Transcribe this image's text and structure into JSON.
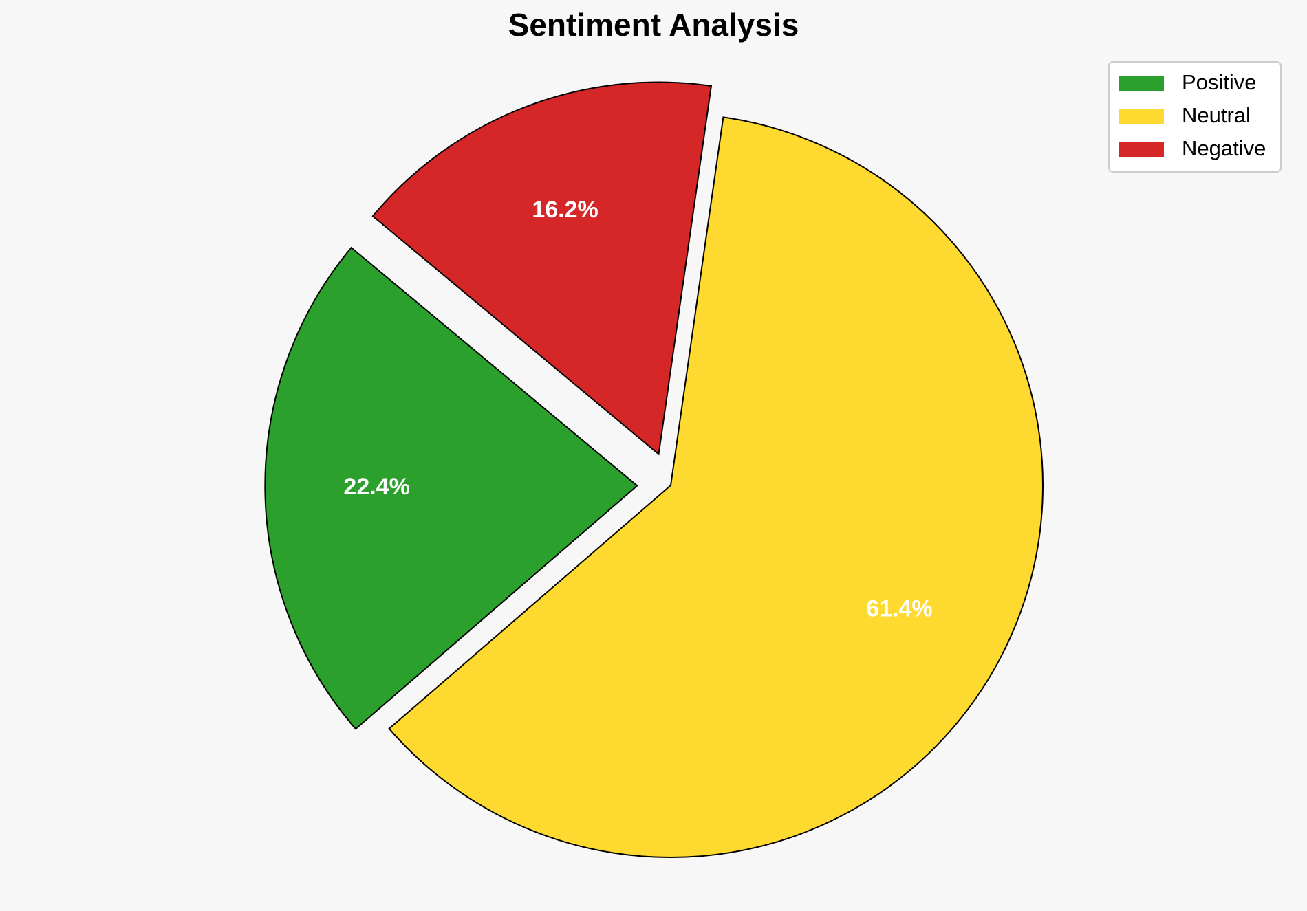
{
  "chart_data": {
    "type": "pie",
    "title": "Sentiment Analysis",
    "categories": [
      "Positive",
      "Neutral",
      "Negative"
    ],
    "values": [
      22.4,
      61.4,
      16.2
    ],
    "value_labels": [
      "22.4%",
      "61.4%",
      "16.2%"
    ],
    "colors": [
      "#2ca02c",
      "#fed930",
      "#d62728"
    ],
    "legend": "upper right"
  }
}
